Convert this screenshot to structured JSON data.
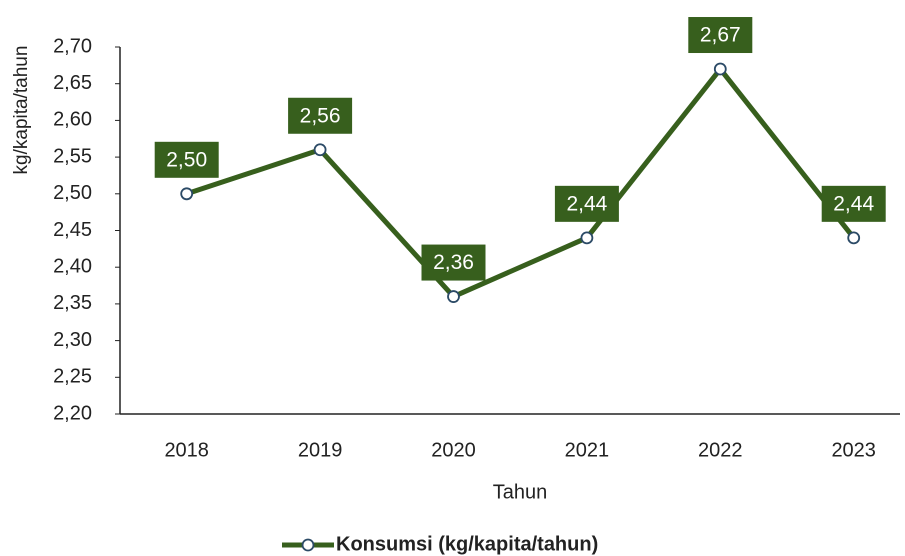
{
  "chart_data": {
    "type": "line",
    "x_label": "Tahun",
    "y_label": "kg/kapita/tahun",
    "categories": [
      "2018",
      "2019",
      "2020",
      "2021",
      "2022",
      "2023"
    ],
    "series": [
      {
        "name": "Konsumsi (kg/kapita/tahun)",
        "color": "#375f1d",
        "marker_color": "#2b4a66",
        "values": [
          2.5,
          2.56,
          2.36,
          2.44,
          2.67,
          2.44
        ],
        "value_labels": [
          "2,50",
          "2,56",
          "2,36",
          "2,44",
          "2,67",
          "2,44"
        ]
      }
    ],
    "ylim": [
      2.2,
      2.7
    ],
    "yticks": [
      {
        "value": 2.2,
        "label": "2,20"
      },
      {
        "value": 2.25,
        "label": "2,25"
      },
      {
        "value": 2.3,
        "label": "2,30"
      },
      {
        "value": 2.35,
        "label": "2,35"
      },
      {
        "value": 2.4,
        "label": "2,40"
      },
      {
        "value": 2.45,
        "label": "2,45"
      },
      {
        "value": 2.5,
        "label": "2,50"
      },
      {
        "value": 2.55,
        "label": "2,55"
      },
      {
        "value": 2.6,
        "label": "2,60"
      },
      {
        "value": 2.65,
        "label": "2,65"
      },
      {
        "value": 2.7,
        "label": "2,70"
      }
    ],
    "grid": false,
    "legend": "bottom"
  }
}
